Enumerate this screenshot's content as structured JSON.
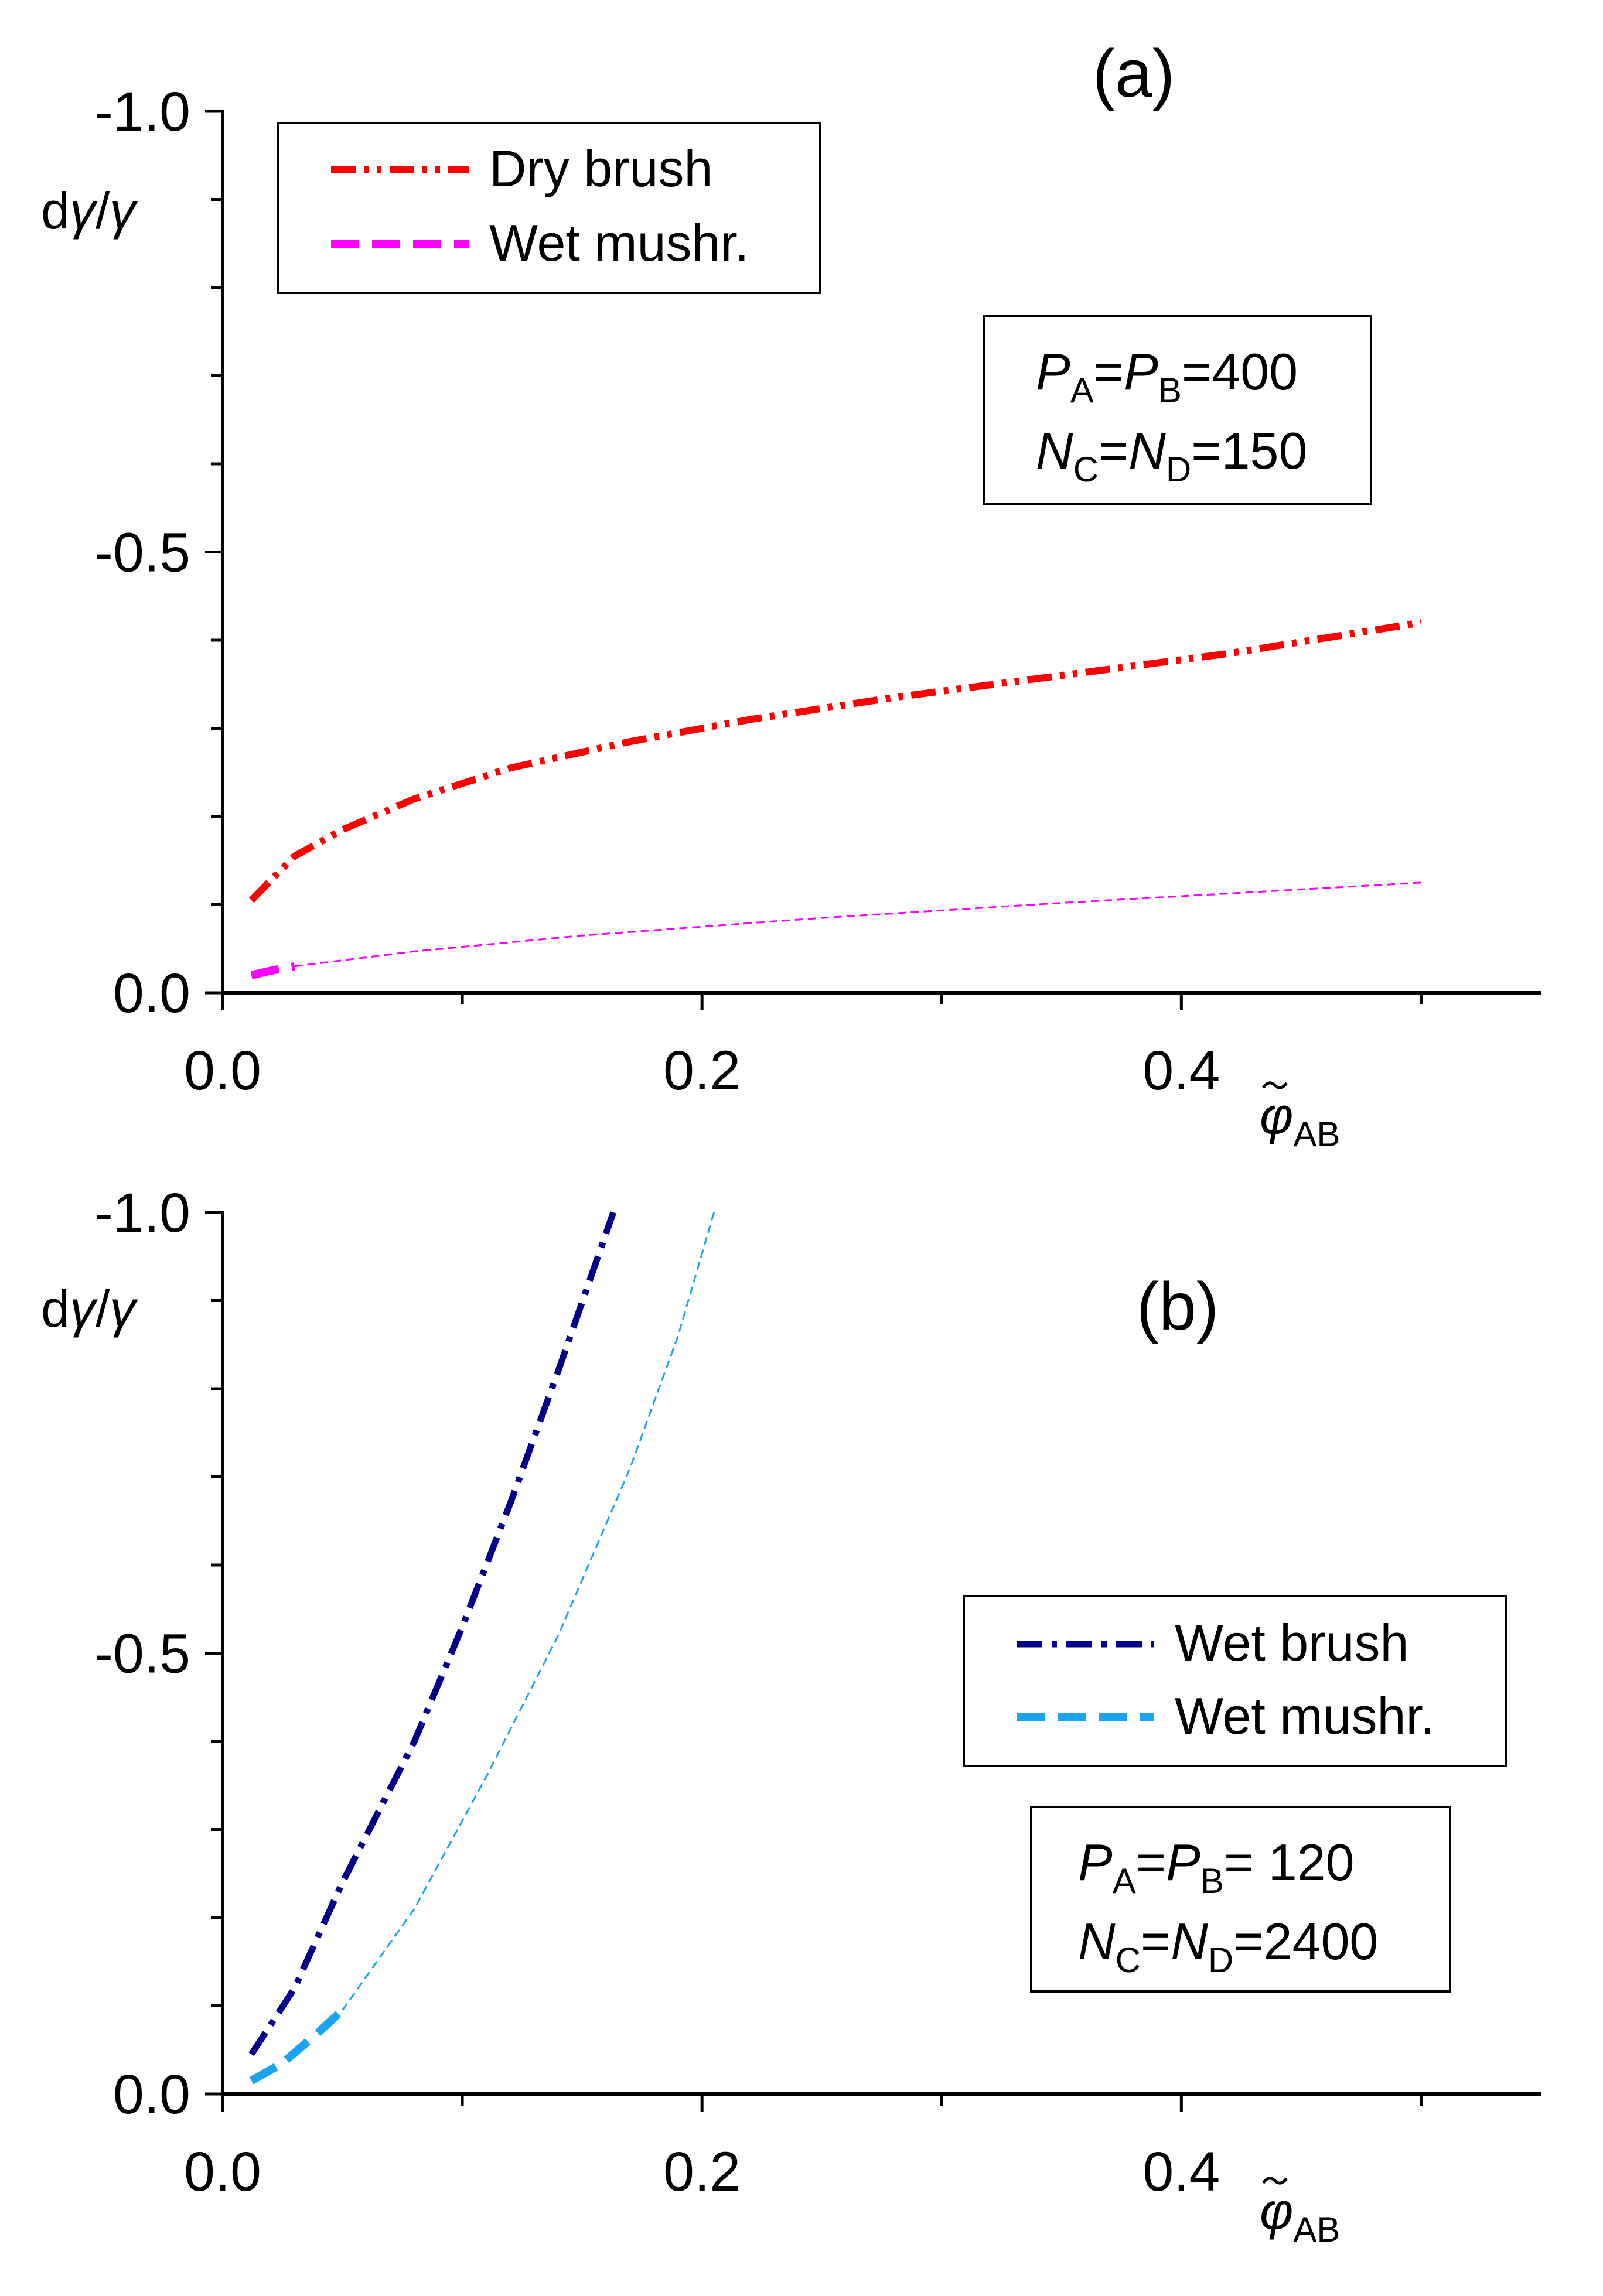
{
  "chart_data": [
    {
      "type": "line",
      "panel_label": "(a)",
      "ylabel": "dγ/γ",
      "xlabel": "φ̃AB",
      "xlabel_main": "φ",
      "xlabel_sub": "AB",
      "ylabel_parts": [
        "d",
        "γ",
        "/",
        "γ"
      ],
      "xlim": [
        0,
        0.55
      ],
      "ylim": [
        0,
        -1.0
      ],
      "xticks": [
        0.0,
        0.2,
        0.4
      ],
      "xtick_labels": [
        "0.0",
        "0.2",
        "0.4"
      ],
      "yticks": [
        0.0,
        -0.5,
        -1.0
      ],
      "ytick_labels": [
        "0.0",
        "-0.5",
        "-1.0"
      ],
      "legend": [
        "Dry brush",
        "Wet mushr."
      ],
      "params": {
        "line1": {
          "p": "P",
          "sub_a": "A",
          "eq": "=",
          "p2": "P",
          "sub_b": "B",
          "value": "=400"
        },
        "line2": {
          "n": "N",
          "sub_c": "C",
          "eq": "=",
          "n2": "N",
          "sub_d": "D",
          "value": "=150"
        }
      },
      "series": [
        {
          "name": "Dry brush",
          "color": "#ff0000",
          "style": "dash-dot-dot",
          "x": [
            0.012,
            0.03,
            0.05,
            0.08,
            0.12,
            0.17,
            0.22,
            0.28,
            0.35,
            0.42,
            0.5
          ],
          "y": [
            -0.105,
            -0.155,
            -0.185,
            -0.22,
            -0.255,
            -0.285,
            -0.31,
            -0.335,
            -0.36,
            -0.385,
            -0.42
          ]
        },
        {
          "name": "Wet mushr.",
          "color": "#ff00ff",
          "style": "dash",
          "x": [
            0.012,
            0.02,
            0.03
          ],
          "y": [
            -0.02,
            -0.025,
            -0.03
          ]
        },
        {
          "name": "Wet mushr. (thin)",
          "color": "#ff00ff",
          "style": "thin-dash",
          "x": [
            0.03,
            0.08,
            0.15,
            0.25,
            0.35,
            0.5
          ],
          "y": [
            -0.03,
            -0.047,
            -0.065,
            -0.085,
            -0.102,
            -0.125
          ]
        }
      ]
    },
    {
      "type": "line",
      "panel_label": "(b)",
      "ylabel": "dγ/γ",
      "xlabel": "φ̃AB",
      "xlabel_main": "φ",
      "xlabel_sub": "AB",
      "ylabel_parts": [
        "d",
        "γ",
        "/",
        "γ"
      ],
      "xlim": [
        0,
        0.55
      ],
      "ylim": [
        0,
        -1.0
      ],
      "xticks": [
        0.0,
        0.2,
        0.4
      ],
      "xtick_labels": [
        "0.0",
        "0.2",
        "0.4"
      ],
      "yticks": [
        0.0,
        -0.5,
        -1.0
      ],
      "ytick_labels": [
        "0.0",
        "-0.5",
        "-1.0"
      ],
      "legend": [
        "Wet brush",
        "Wet mushr."
      ],
      "params": {
        "line1": {
          "p": "P",
          "sub_a": "A",
          "eq": "=",
          "p2": "P",
          "sub_b": "B",
          "value": "=  120"
        },
        "line2": {
          "n": "N",
          "sub_c": "C",
          "eq": "=",
          "n2": "N",
          "sub_d": "D",
          "value": "=2400"
        }
      },
      "series": [
        {
          "name": "Wet brush",
          "color": "#00008b",
          "style": "dash-dot",
          "x": [
            0.012,
            0.03,
            0.05,
            0.08,
            0.1,
            0.12,
            0.14,
            0.163
          ],
          "y": [
            -0.045,
            -0.12,
            -0.24,
            -0.4,
            -0.53,
            -0.67,
            -0.82,
            -1.0
          ]
        },
        {
          "name": "Wet mushr.",
          "color": "#1aa3f0",
          "style": "dash",
          "x": [
            0.012,
            0.025,
            0.04,
            0.05
          ],
          "y": [
            -0.015,
            -0.035,
            -0.07,
            -0.095
          ]
        },
        {
          "name": "Wet mushr. (thin)",
          "color": "#1aa3f0",
          "style": "thin-dash",
          "x": [
            0.05,
            0.08,
            0.11,
            0.14,
            0.17,
            0.19,
            0.205
          ],
          "y": [
            -0.095,
            -0.21,
            -0.36,
            -0.52,
            -0.71,
            -0.86,
            -1.0
          ]
        }
      ]
    }
  ]
}
